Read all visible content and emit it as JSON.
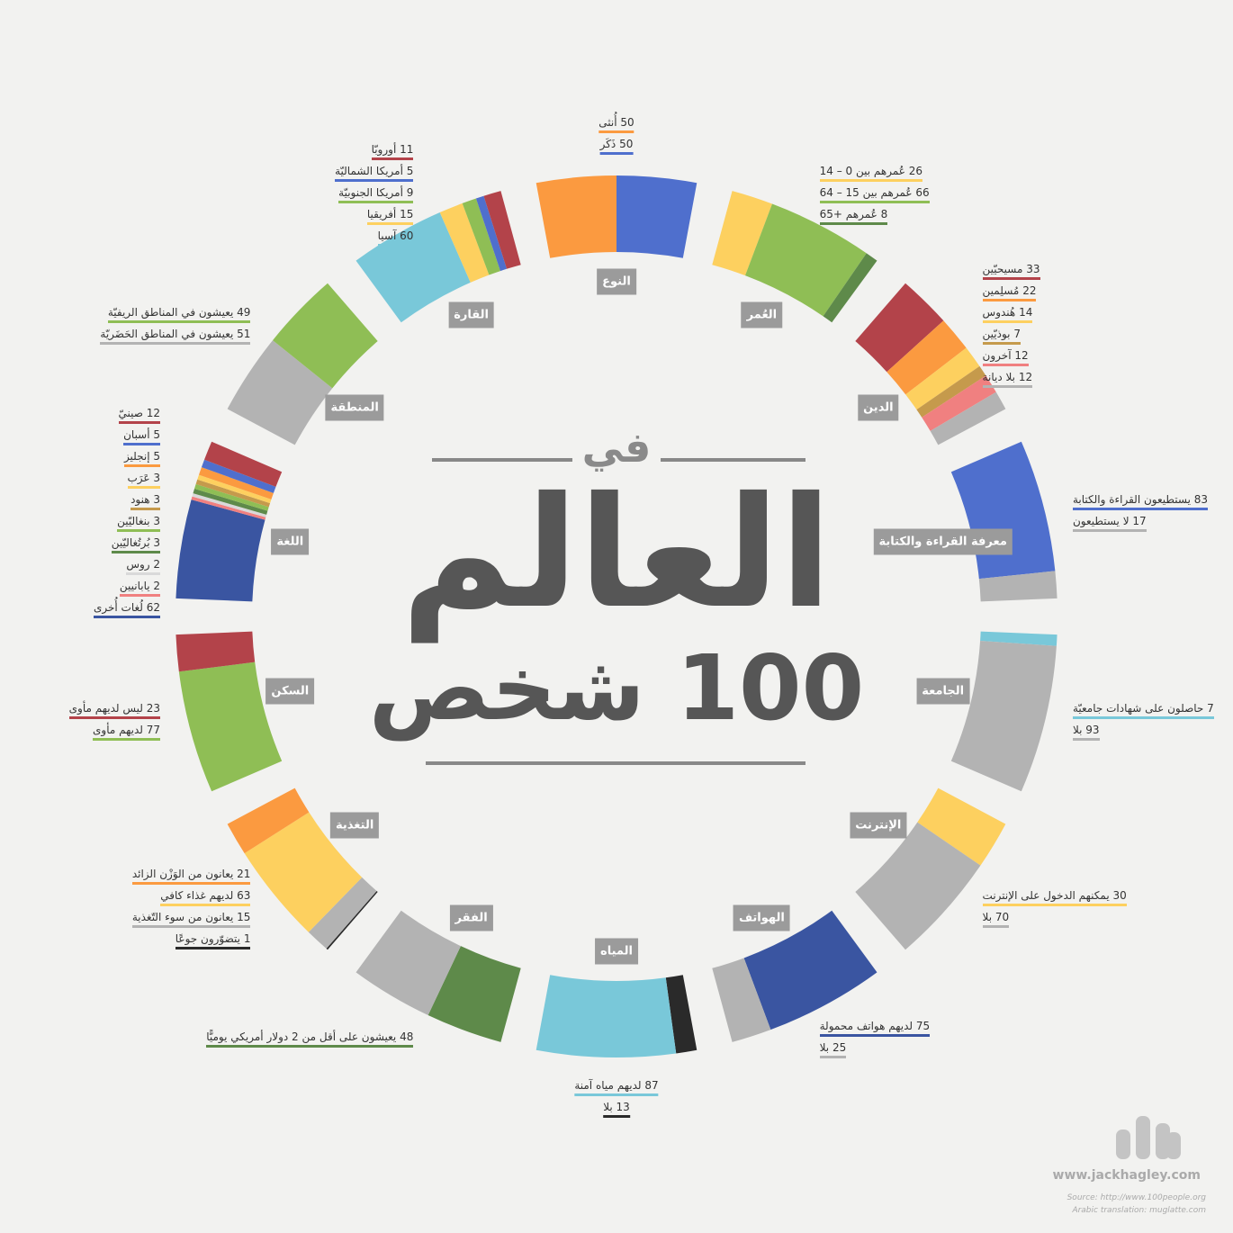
{
  "chart_data": {
    "type": "segmented-ring",
    "pretitle": "في",
    "title": "العالم",
    "subtitle": "100 شخص",
    "groups": [
      {
        "name": "النوع",
        "items": [
          {
            "label": "أُنثى",
            "value": 50,
            "color": "#fb9a40"
          },
          {
            "label": "ذَكَر",
            "value": 50,
            "color": "#4f6fcd"
          }
        ]
      },
      {
        "name": "العُمر",
        "items": [
          {
            "label": "عُمرهم بين 0 – 14",
            "value": 26,
            "color": "#fdd05f"
          },
          {
            "label": "عُمرهم بين 15 – 64",
            "value": 66,
            "color": "#8fbe55"
          },
          {
            "label": "عُمرهم +65",
            "value": 8,
            "color": "#5e8a4a"
          }
        ]
      },
      {
        "name": "الدين",
        "items": [
          {
            "label": "مسيحيّين",
            "value": 33,
            "color": "#b3434a"
          },
          {
            "label": "مُسلِمين",
            "value": 22,
            "color": "#fb9a40"
          },
          {
            "label": "هُندوس",
            "value": 14,
            "color": "#fdd05f"
          },
          {
            "label": "بوذيّين",
            "value": 7,
            "color": "#c59a4c"
          },
          {
            "label": "آخرون",
            "value": 12,
            "color": "#f08080"
          },
          {
            "label": "بلا ديانة",
            "value": 12,
            "color": "#b3b3b3"
          }
        ]
      },
      {
        "name": "معرفة القراءة والكتابة",
        "items": [
          {
            "label": "يستطيعون القراءة والكتابة",
            "value": 83,
            "color": "#4f6fcd"
          },
          {
            "label": "لا يستطيعون",
            "value": 17,
            "color": "#b3b3b3"
          }
        ]
      },
      {
        "name": "الجامعة",
        "items": [
          {
            "label": "حاصلون على شهادات جامعيّة",
            "value": 7,
            "color": "#79c8d9"
          },
          {
            "label": "بلا",
            "value": 93,
            "color": "#b3b3b3"
          }
        ]
      },
      {
        "name": "الإنترنت",
        "items": [
          {
            "label": "يمكنهم الدخول على الإنترنت",
            "value": 30,
            "color": "#fdd05f"
          },
          {
            "label": "بلا",
            "value": 70,
            "color": "#b3b3b3"
          }
        ]
      },
      {
        "name": "الهواتف",
        "items": [
          {
            "label": "لديهم هواتف محمولة",
            "value": 75,
            "color": "#3a55a1"
          },
          {
            "label": "بلا",
            "value": 25,
            "color": "#b3b3b3"
          }
        ]
      },
      {
        "name": "المياه",
        "items": [
          {
            "label": "بلا",
            "value": 13,
            "color": "#2a2a2a"
          },
          {
            "label": "لديهم مياه آمنة",
            "value": 87,
            "color": "#79c8d9"
          }
        ]
      },
      {
        "name": "الفقر",
        "items": [
          {
            "label": "يعيشون على أقل من 2 دولار أمريكي يوميًّا",
            "value": 48,
            "color": "#5e8a4a"
          },
          {
            "label": null,
            "value": 52,
            "color": "#b3b3b3"
          }
        ]
      },
      {
        "name": "التغذية",
        "items": [
          {
            "label": "يتضوّرون جوعًا",
            "value": 1,
            "color": "#2a2a2a"
          },
          {
            "label": "يعانون من سوء التّغذية",
            "value": 15,
            "color": "#b3b3b3"
          },
          {
            "label": "لديهم غذاء كافي",
            "value": 63,
            "color": "#fdd05f"
          },
          {
            "label": "يعانون من الوَزْن الزائد",
            "value": 21,
            "color": "#fb9a40"
          }
        ]
      },
      {
        "name": "السكن",
        "items": [
          {
            "label": "لديهم مأوى",
            "value": 77,
            "color": "#8fbe55"
          },
          {
            "label": "ليس لديهم مأوى",
            "value": 23,
            "color": "#b3434a"
          }
        ]
      },
      {
        "name": "اللغة",
        "items": [
          {
            "label": "لُغات أُخرى",
            "value": 62,
            "color": "#3a55a1"
          },
          {
            "label": "يابانيين",
            "value": 2,
            "color": "#f08080"
          },
          {
            "label": "روس",
            "value": 2,
            "color": "#d9d9d9"
          },
          {
            "label": "بُرتُغاليّين",
            "value": 3,
            "color": "#5e8a4a"
          },
          {
            "label": "بنغاليّين",
            "value": 3,
            "color": "#8fbe55"
          },
          {
            "label": "هنود",
            "value": 3,
            "color": "#c59a4c"
          },
          {
            "label": "عَرَب",
            "value": 3,
            "color": "#fdd05f"
          },
          {
            "label": "إنجليز",
            "value": 5,
            "color": "#fb9a40"
          },
          {
            "label": "أسبان",
            "value": 5,
            "color": "#4f6fcd"
          },
          {
            "label": "صينيّ",
            "value": 12,
            "color": "#b3434a"
          }
        ]
      },
      {
        "name": "المنطقة",
        "items": [
          {
            "label": "يعيشون في المناطق الحَضَريّة",
            "value": 51,
            "color": "#b3b3b3"
          },
          {
            "label": "يعيشون في المناطق الريفيّة",
            "value": 49,
            "color": "#8fbe55"
          }
        ]
      },
      {
        "name": "القارة",
        "items": [
          {
            "label": "آسيا",
            "value": 60,
            "color": "#79c8d9"
          },
          {
            "label": "أفريقيا",
            "value": 15,
            "color": "#fdd05f"
          },
          {
            "label": "أمريكا الجنوبيّة",
            "value": 9,
            "color": "#8fbe55"
          },
          {
            "label": "أمريكا الشماليّة",
            "value": 5,
            "color": "#4f6fcd"
          },
          {
            "label": "أوروبّا",
            "value": 11,
            "color": "#b3434a"
          }
        ]
      }
    ]
  },
  "footer": {
    "site": "www.jackhagley.com",
    "source": "Source: http://www.100people.org",
    "translation": "Arabic translation: muglatte.com"
  }
}
